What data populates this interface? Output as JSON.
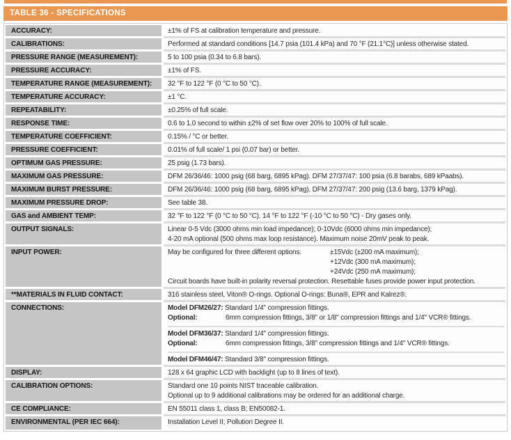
{
  "table": {
    "title": "TABLE 36 - SPECIFICATIONS",
    "accent_color": "#EA9851",
    "label_bg_color": "#C5C5C5"
  },
  "rows": [
    {
      "label": "ACCURACY:",
      "value": "±1% of FS at calibration temperature and pressure."
    },
    {
      "label": "CALIBRATIONS:",
      "value": "Performed at standard conditions [14.7 psia (101.4 kPa) and 70 °F (21.1°C)] unless otherwise stated."
    },
    {
      "label": "PRESSURE RANGE (MEASUREMENT):",
      "value": "5 to 100 psia (0.34 to 6.8 bars)."
    },
    {
      "label": "PRESSURE ACCURACY:",
      "value": "±1% of FS."
    },
    {
      "label": "TEMPERATURE RANGE (MEASUREMENT):",
      "value": "32 °F to 122 °F (0 °C to 50 °C)."
    },
    {
      "label": "TEMPERATURE ACCURACY:",
      "value": "±1 °C."
    },
    {
      "label": "REPEATABILITY:",
      "value": "±0.25% of full scale."
    },
    {
      "label": "RESPONSE TIME:",
      "value": "0.6 to 1.0 second to within ±2% of set flow over 20% to 100% of full scale."
    },
    {
      "label": "TEMPERATURE COEFFICIENT:",
      "value": "0.15% / °C or better."
    },
    {
      "label": "PRESSURE COEFFICIENT:",
      "value": "0.01% of full scale/ 1 psi (0.07 bar) or better."
    },
    {
      "label": "OPTIMUM GAS PRESSURE:",
      "value": "25 psig (1.73 bars)."
    },
    {
      "label": "MAXIMUM GAS PRESSURE:",
      "value": "DFM 26/36/46: 1000 psig (68 barg, 6895 kPag). DFM 27/37/47: 100 psia (6.8 barabs, 689 kPaabs)."
    },
    {
      "label": "MAXIMUM BURST PRESSURE:",
      "value": "DFM 26/36/46: 1000 psig (68 barg, 6895 kPag). DFM 27/37/47: 200 psig (13.6 barg, 1379 kPag)."
    },
    {
      "label": "MAXIMUM PRESSURE DROP:",
      "value": "See table 38."
    },
    {
      "label": "GAS and AMBIENT TEMP:",
      "value": "32 °F to 122 °F (0 °C to 50 °C). 14 °F to 122 °F (-10 °C to 50 °C) - Dry gases only."
    },
    {
      "label": "OUTPUT SIGNALS:",
      "value_lines": [
        "Linear 0-5 Vdc (3000 ohms min load impedance); 0-10Vdc (6000 ohms min impedance);",
        "4-20 mA optional (500 ohms max loop resistance). Maximum noise 20mV peak to peak."
      ]
    },
    {
      "label": "INPUT POWER:",
      "intro": "May be configured for three different options:",
      "options": [
        "±15Vdc (±200 mA maximum);",
        "+12Vdc (300 mA maximum);",
        "+24Vdc (250 mA maximum);"
      ],
      "footer": "Circuit boards have built-in polarity reversal protection. Resettable fuses provide power input protection."
    },
    {
      "label": "**MATERIALS IN FLUID CONTACT:",
      "value": "316 stainless steel, Viton® O-rings. Optional O-rings: Buna®, EPR and Kalrez®."
    },
    {
      "label": "CONNECTIONS:",
      "groups": [
        {
          "model": "Model DFM26/27:",
          "standard": "Standard 1/4\" compression fittings.",
          "optional_label": "Optional:",
          "optional": "6mm compression fittings, 3/8\" or 1/8\" compression fittings and 1/4\" VCR® fittings."
        },
        {
          "model": "Model DFM36/37:",
          "standard": "Standard 1/4\" compression fittings.",
          "optional_label": "Optional:",
          "optional": "6mm compression fittings, 3/8\" compression fittings and 1/4\" VCR® fittings."
        },
        {
          "model": "Model DFM46/47:",
          "standard": "Standard 3/8\" compression fittings."
        }
      ]
    },
    {
      "label": "DISPLAY:",
      "value": "128 x 64 graphic LCD with backlight (up to 8 lines of text)."
    },
    {
      "label": "CALIBRATION OPTIONS:",
      "value_lines": [
        "Standard one 10 points NIST traceable calibration.",
        "Optional up to 9 additional calibrations may be ordered for an additional charge."
      ]
    },
    {
      "label": "CE COMPLIANCE:",
      "value": "EN 55011 class 1, class B; EN50082-1."
    },
    {
      "label": "ENVIRONMENTAL (PER IEC 664):",
      "value": "Installation Level II; Pollution Degree II."
    }
  ]
}
